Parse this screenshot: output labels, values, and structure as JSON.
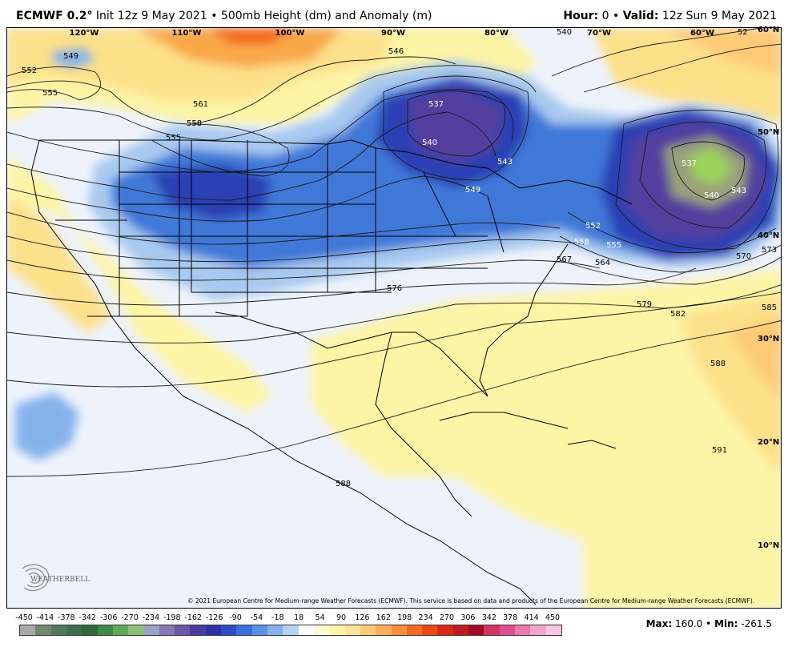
{
  "header": {
    "model": "ECMWF 0.2",
    "degree": "°",
    "init_text": "Init 12z 9 May 2021",
    "bullet": "•",
    "product": "500mb Height (dm) and Anomaly (m)",
    "hour_label": "Hour:",
    "hour_value": "0",
    "valid_label": "Valid:",
    "valid_value": "12z Sun 9 May 2021"
  },
  "map": {
    "longitude_labels": [
      "120°W",
      "110°W",
      "100°W",
      "90°W",
      "80°W",
      "70°W",
      "60°W"
    ],
    "latitude_labels": [
      "60°N",
      "50°N",
      "40°N",
      "30°N",
      "20°N",
      "10°N"
    ],
    "contour_labels": [
      "549",
      "552",
      "555",
      "561",
      "558",
      "555",
      "546",
      "540",
      "537",
      "540",
      "543",
      "549",
      "537",
      "540",
      "543",
      "552",
      "558",
      "555",
      "564",
      "567",
      "570",
      "573",
      "576",
      "579",
      "582",
      "585",
      "588",
      "591",
      "588",
      "52"
    ],
    "colors": {
      "ocean": "#eef3fb",
      "land_bg": "#f4f6fb",
      "positive_light": "#fdf4a6",
      "positive_mid": "#fde08a",
      "positive_strong": "#f9a84a",
      "positive_max": "#f4661f",
      "negative_light": "#a8c9ef",
      "negative_mid": "#3f78d8",
      "negative_strong": "#2c3fb4",
      "negative_deep": "#52409e",
      "anomaly_core": "#9bd35a"
    }
  },
  "copyright": "© 2021 European Centre for Medium-range Weather Forecasts (ECMWF). This service is based on data and products of the European Centre for Medium-range Weather Forecasts (ECMWF).",
  "logo": {
    "text": "WEATHERBELL"
  },
  "colorbar": {
    "ticks": [
      "-450",
      "-414",
      "-378",
      "-342",
      "-306",
      "-270",
      "-234",
      "-198",
      "-162",
      "-126",
      "-90",
      "-54",
      "-18",
      "18",
      "54",
      "90",
      "126",
      "162",
      "198",
      "234",
      "270",
      "306",
      "342",
      "378",
      "414",
      "450"
    ],
    "colors": [
      "#a8a8a8",
      "#6f8a6f",
      "#4f7a5c",
      "#3e6e4c",
      "#2e6a3a",
      "#3c8a4a",
      "#5fa85a",
      "#8cc07a",
      "#9aa0c8",
      "#8878b8",
      "#6a58a8",
      "#4a3c9c",
      "#2b31a3",
      "#2e4bc2",
      "#3b6ed8",
      "#5b92e4",
      "#86b2ec",
      "#b6d2f2",
      "#ffffff",
      "#fffbd0",
      "#fff3a4",
      "#ffe39a",
      "#fdca77",
      "#fbaf5a",
      "#f88e3c",
      "#f26a22",
      "#ea4a16",
      "#d82a1a",
      "#c01a20",
      "#a00c26",
      "#d43464",
      "#e05090",
      "#e87ab0",
      "#f0a6cc",
      "#f6c6e0"
    ],
    "max_label": "Max:",
    "max_value": "160.0",
    "min_label": "Min:",
    "min_value": "-261.5"
  }
}
